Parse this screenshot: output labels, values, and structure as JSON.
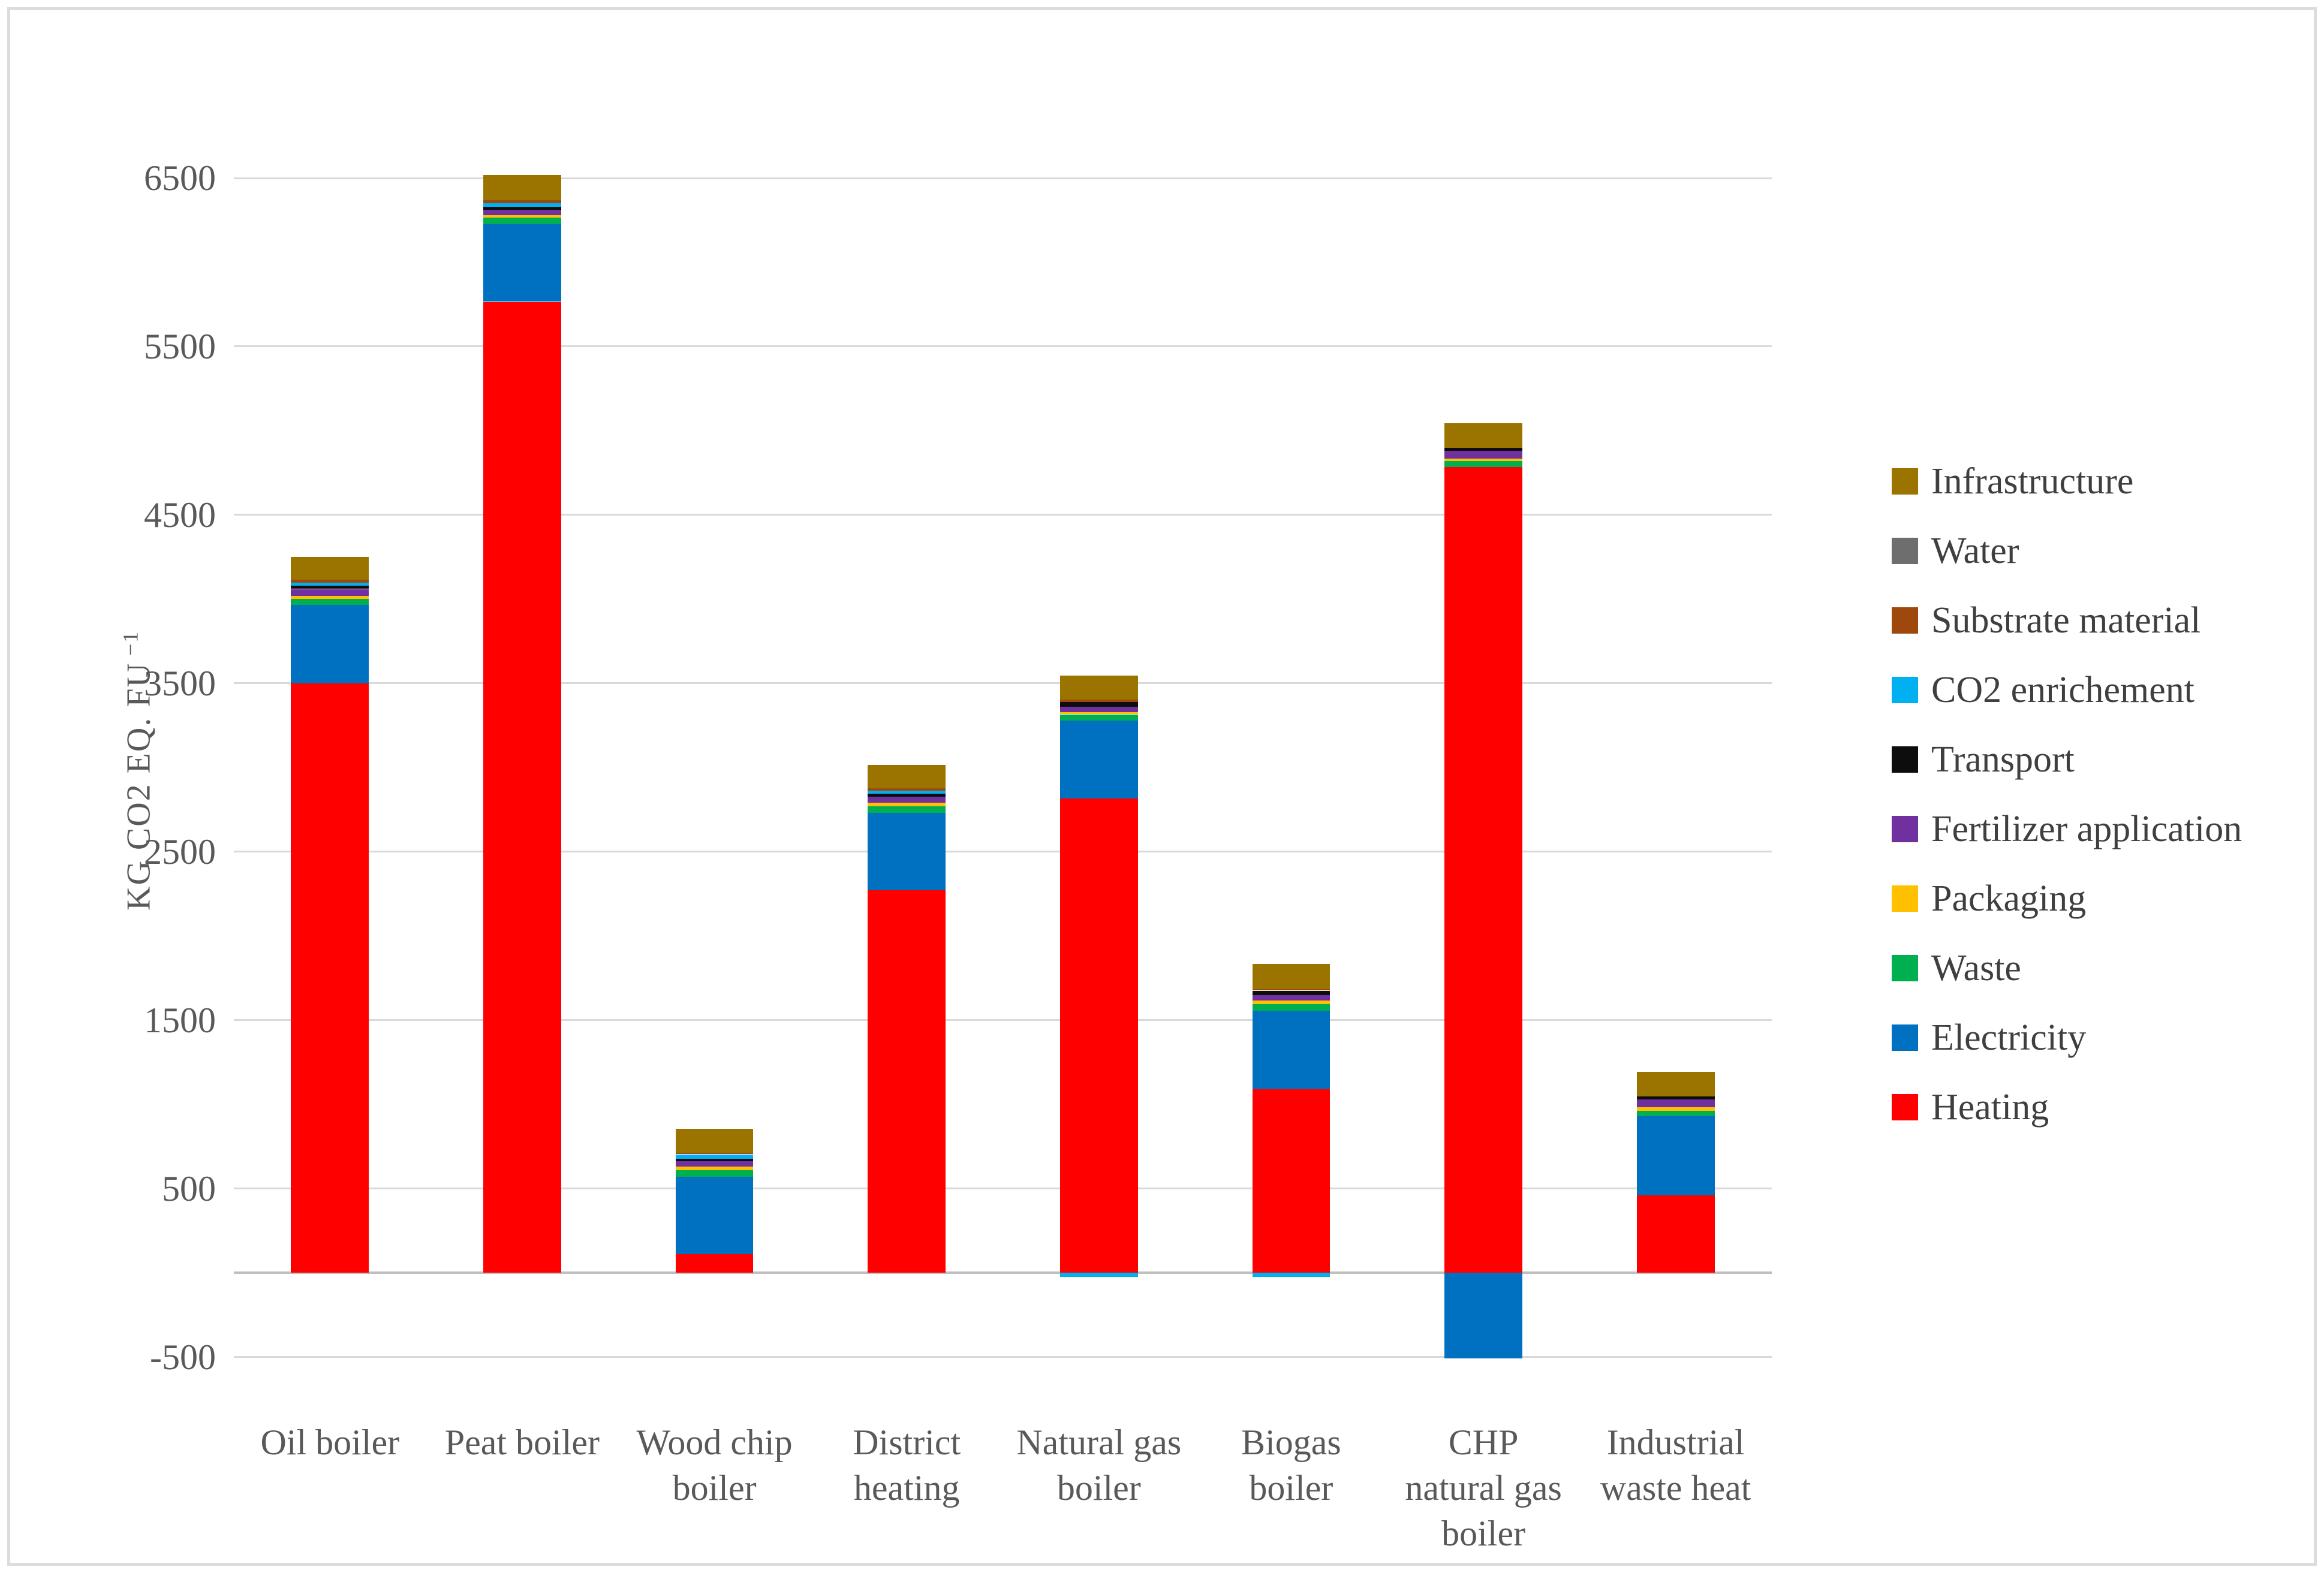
{
  "axis": {
    "title": "KG CO2 EQ. FU",
    "exponent": "−1"
  },
  "chart_data": {
    "type": "bar",
    "stacked": true,
    "title": "",
    "xlabel": "",
    "ylabel": "KG CO2 EQ. FU⁻¹",
    "ylim": [
      -500,
      6500
    ],
    "yticks": [
      6500,
      5500,
      4500,
      3500,
      2500,
      1500,
      500,
      -500
    ],
    "grid": true,
    "legend_position": "right",
    "categories": [
      "Oil boiler",
      "Peat boiler",
      "Wood chip\nboiler",
      "District\nheating",
      "Natural gas\nboiler",
      "Biogas\nboiler",
      "CHP\nnatural gas\nboiler",
      "Industrial\nwaste heat"
    ],
    "series": [
      {
        "name": "Heating",
        "color": "#ff0000",
        "values": [
          3500,
          5765,
          110,
          2270,
          2815,
          1090,
          4785,
          460
        ]
      },
      {
        "name": "Electricity",
        "color": "#0070c0",
        "values": [
          465,
          460,
          460,
          460,
          463,
          465,
          -510,
          470
        ]
      },
      {
        "name": "Waste",
        "color": "#00b050",
        "values": [
          35,
          40,
          40,
          39,
          38,
          40,
          35,
          32
        ]
      },
      {
        "name": "Packaging",
        "color": "#ffc000",
        "values": [
          20,
          15,
          19,
          23,
          12,
          20,
          15,
          22
        ]
      },
      {
        "name": "Fertilizer application",
        "color": "#7030a0",
        "values": [
          40,
          30,
          32,
          35,
          33,
          35,
          45,
          45
        ]
      },
      {
        "name": "Transport",
        "color": "#0d0d0d",
        "values": [
          18,
          18,
          15,
          16,
          27,
          25,
          18,
          18
        ]
      },
      {
        "name": "CO2 enrichement",
        "color": "#00b0f0",
        "values": [
          18,
          24,
          27,
          18,
          -25,
          -25,
          0,
          0
        ]
      },
      {
        "name": "Substrate material",
        "color": "#9e480e",
        "values": [
          20,
          15,
          10,
          14,
          14,
          10,
          0,
          0
        ]
      },
      {
        "name": "Water",
        "color": "#6e6e6e",
        "values": [
          0,
          0,
          0,
          0,
          0,
          0,
          0,
          0
        ]
      },
      {
        "name": "Infrastructure",
        "color": "#9b7400",
        "values": [
          135,
          152,
          140,
          139,
          143,
          150,
          148,
          145
        ]
      }
    ],
    "totals_positive": [
      4251,
      6519,
      853,
      3014,
      3545,
      1835,
      5046,
      1192
    ],
    "legend_order_top_to_bottom": [
      "Infrastructure",
      "Water",
      "Substrate material",
      "CO2 enrichement",
      "Transport",
      "Fertilizer application",
      "Packaging",
      "Waste",
      "Electricity",
      "Heating"
    ]
  }
}
